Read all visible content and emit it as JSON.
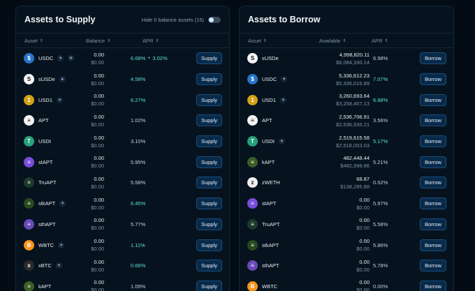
{
  "supply": {
    "title": "Assets to Supply",
    "hide_zero_label": "Hide 0 balance assets (15)",
    "columns": {
      "asset": "Asset",
      "balance": "Balance",
      "apr": "APR"
    },
    "button_label": "Supply",
    "rows": [
      {
        "symbol": "USDC",
        "icon": "usdc",
        "color": "#2775ca",
        "glyph": "$",
        "chips": [
          "star",
          "snowflake"
        ],
        "amount": "0.00",
        "usd": "$0.00",
        "apr": "6.68%",
        "apr2": "3.02%",
        "boost": true
      },
      {
        "symbol": "sUSDe",
        "icon": "susde",
        "color": "#f5f5f5",
        "glyph": "S",
        "chips": [
          "coin"
        ],
        "amount": "0.00",
        "usd": "$0.00",
        "apr": "4.58%",
        "boost": true
      },
      {
        "symbol": "USD1",
        "icon": "usd1",
        "color": "#d4a017",
        "glyph": "1",
        "chips": [
          "star"
        ],
        "amount": "0.00",
        "usd": "$0.00",
        "apr": "6.27%",
        "boost": true
      },
      {
        "symbol": "APT",
        "icon": "apt",
        "color": "#f2f2f2",
        "glyph": "≡",
        "chips": [],
        "amount": "0.00",
        "usd": "$0.00",
        "apr": "1.02%",
        "boost": false
      },
      {
        "symbol": "USDt",
        "icon": "usdt",
        "color": "#26a17b",
        "glyph": "T",
        "chips": [],
        "amount": "0.00",
        "usd": "$0.00",
        "apr": "3.10%",
        "boost": false
      },
      {
        "symbol": "stAPT",
        "icon": "stapt",
        "color": "#7b4ddb",
        "glyph": "≡",
        "chips": [],
        "amount": "0.00",
        "usd": "$0.00",
        "apr": "5.95%",
        "boost": false
      },
      {
        "symbol": "TruAPT",
        "icon": "truapt",
        "color": "#1e3a2a",
        "glyph": "≡",
        "chips": [],
        "amount": "0.00",
        "usd": "$0.00",
        "apr": "5.58%",
        "boost": false
      },
      {
        "symbol": "stkAPT",
        "icon": "stkapt",
        "color": "#274a1f",
        "glyph": "≡",
        "chips": [
          "star"
        ],
        "amount": "0.00",
        "usd": "$0.00",
        "apr": "6.45%",
        "boost": true
      },
      {
        "symbol": "sthAPT",
        "icon": "sthapt",
        "color": "#6a4ab8",
        "glyph": "≡",
        "chips": [],
        "amount": "0.00",
        "usd": "$0.00",
        "apr": "5.77%",
        "boost": false
      },
      {
        "symbol": "WBTC",
        "icon": "wbtc",
        "color": "#f7931a",
        "glyph": "B",
        "chips": [
          "star"
        ],
        "amount": "0.00",
        "usd": "$0.00",
        "apr": "1.11%",
        "boost": true
      },
      {
        "symbol": "xBTC",
        "icon": "xbtc",
        "color": "#2a2a2a",
        "glyph": "x",
        "chips": [
          "star"
        ],
        "amount": "0.00",
        "usd": "$0.00",
        "apr": "0.66%",
        "boost": true
      },
      {
        "symbol": "kAPT",
        "icon": "kapt",
        "color": "#3b5e27",
        "glyph": "≡",
        "chips": [],
        "amount": "0.00",
        "usd": "$0.00",
        "apr": "1.09%",
        "boost": false
      }
    ]
  },
  "borrow": {
    "title": "Assets to Borrow",
    "columns": {
      "asset": "Asset",
      "available": "Available",
      "apr": "APR"
    },
    "button_label": "Borrow",
    "rows": [
      {
        "symbol": "sUSDe",
        "icon": "susde",
        "color": "#f5f5f5",
        "glyph": "S",
        "chips": [],
        "amount": "4,998,820.11",
        "usd": "$6,084,330.14",
        "apr": "6.98%",
        "boost": false
      },
      {
        "symbol": "USDC",
        "icon": "usdc",
        "color": "#2775ca",
        "glyph": "$",
        "chips": [
          "star"
        ],
        "amount": "5,336,612.23",
        "usd": "$5,336,016.89",
        "apr": "7.07%",
        "boost": true
      },
      {
        "symbol": "USD1",
        "icon": "usd1",
        "color": "#d4a017",
        "glyph": "1",
        "chips": [
          "star"
        ],
        "amount": "3,260,693.64",
        "usd": "$3,258,407.13",
        "apr": "6.88%",
        "boost": true
      },
      {
        "symbol": "APT",
        "icon": "apt",
        "color": "#f2f2f2",
        "glyph": "≡",
        "chips": [],
        "amount": "2,536,706.91",
        "usd": "$2,536,935.21",
        "apr": "3.56%",
        "boost": false
      },
      {
        "symbol": "USDt",
        "icon": "usdt",
        "color": "#26a17b",
        "glyph": "T",
        "chips": [
          "star"
        ],
        "amount": "2,519,615.58",
        "usd": "$2,518,003.03",
        "apr": "5.17%",
        "boost": true
      },
      {
        "symbol": "kAPT",
        "icon": "kapt",
        "color": "#3b5e27",
        "glyph": "≡",
        "chips": [],
        "amount": "482,448.44",
        "usd": "$482,998.86",
        "apr": "5.21%",
        "boost": false
      },
      {
        "symbol": "zWETH",
        "icon": "zweth",
        "color": "#f0f0f0",
        "glyph": "z",
        "chips": [],
        "amount": "68.87",
        "usd": "$138,285.88",
        "apr": "0.52%",
        "boost": false
      },
      {
        "symbol": "stAPT",
        "icon": "stapt",
        "color": "#7b4ddb",
        "glyph": "≡",
        "chips": [],
        "amount": "0.00",
        "usd": "$0.00",
        "apr": "5.97%",
        "boost": false
      },
      {
        "symbol": "TruAPT",
        "icon": "truapt",
        "color": "#1e3a2a",
        "glyph": "≡",
        "chips": [],
        "amount": "0.00",
        "usd": "$0.00",
        "apr": "5.58%",
        "boost": false
      },
      {
        "symbol": "stkAPT",
        "icon": "stkapt",
        "color": "#274a1f",
        "glyph": "≡",
        "chips": [],
        "amount": "0.00",
        "usd": "$0.00",
        "apr": "5.86%",
        "boost": false
      },
      {
        "symbol": "sthAPT",
        "icon": "sthapt",
        "color": "#6a4ab8",
        "glyph": "≡",
        "chips": [],
        "amount": "0.00",
        "usd": "$0.00",
        "apr": "5.78%",
        "boost": false
      },
      {
        "symbol": "WBTC",
        "icon": "wbtc",
        "color": "#f7931a",
        "glyph": "B",
        "chips": [],
        "amount": "0.00",
        "usd": "$0.00",
        "apr": "0.00%",
        "boost": false
      }
    ]
  }
}
